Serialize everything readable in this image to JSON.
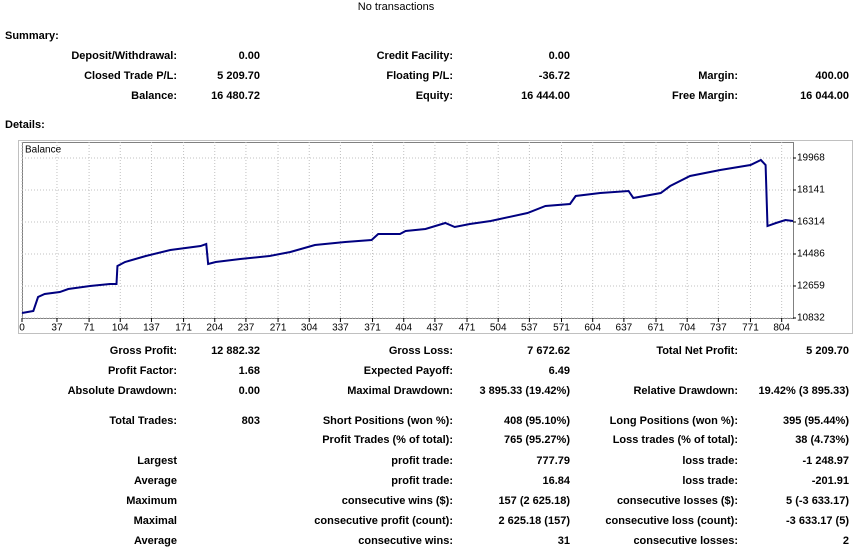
{
  "header": "No transactions",
  "summary": {
    "title": "Summary:",
    "rows": [
      [
        "Deposit/Withdrawal:",
        "0.00",
        "Credit Facility:",
        "0.00",
        null,
        null
      ],
      [
        "Closed Trade P/L:",
        "5 209.70",
        "Floating P/L:",
        "-36.72",
        "Margin:",
        "400.00"
      ],
      [
        "Balance:",
        "16 480.72",
        "Equity:",
        "16 444.00",
        "Free Margin:",
        "16 044.00"
      ]
    ]
  },
  "details": {
    "title": "Details:",
    "chart": {
      "type": "line",
      "series": [
        {
          "name": "Balance",
          "color": "#000080",
          "x": [
            0,
            12,
            17,
            24,
            40,
            49,
            72,
            93,
            100,
            101,
            109,
            131,
            157,
            189,
            195,
            197,
            205,
            231,
            262,
            284,
            310,
            342,
            370,
            377,
            400,
            406,
            427,
            448,
            458,
            474,
            496,
            535,
            554,
            580,
            586,
            612,
            642,
            647,
            676,
            686,
            707,
            739,
            771,
            782,
            787,
            789,
            798,
            808,
            816
          ],
          "values": [
            11117,
            11232,
            12031,
            12202,
            12316,
            12488,
            12659,
            12773,
            12773,
            13801,
            14030,
            14372,
            14715,
            14943,
            15057,
            13915,
            14030,
            14201,
            14372,
            14601,
            15000,
            15172,
            15286,
            15629,
            15629,
            15800,
            15914,
            16257,
            16029,
            16200,
            16371,
            16828,
            17228,
            17342,
            17799,
            17970,
            18084,
            17685,
            17970,
            18369,
            18940,
            19283,
            19568,
            19854,
            19568,
            16085,
            16257,
            16428,
            16371
          ]
        }
      ],
      "xlim": [
        0,
        816
      ],
      "xticks": [
        0,
        37,
        71,
        104,
        137,
        171,
        204,
        237,
        271,
        304,
        337,
        371,
        404,
        437,
        471,
        504,
        537,
        571,
        604,
        637,
        671,
        704,
        737,
        771,
        804
      ],
      "ylim": [
        10832,
        20882
      ],
      "yticks": [
        10832,
        12659,
        14486,
        16314,
        18141,
        19968
      ],
      "grid": true
    },
    "rows": [
      [
        "Gross Profit:",
        "12 882.32",
        "Gross Loss:",
        "7 672.62",
        "Total Net Profit:",
        "5 209.70"
      ],
      [
        "Profit Factor:",
        "1.68",
        "Expected Payoff:",
        "6.49",
        null,
        null
      ],
      [
        "Absolute Drawdown:",
        "0.00",
        "Maximal Drawdown:",
        "3 895.33 (19.42%)",
        "Relative Drawdown:",
        "19.42% (3 895.33)"
      ],
      [
        "Total Trades:",
        "803",
        "Short Positions (won %):",
        "408 (95.10%)",
        "Long Positions (won %):",
        "395 (95.44%)"
      ],
      [
        null,
        null,
        "Profit Trades (% of total):",
        "765 (95.27%)",
        "Loss trades (% of total):",
        "38 (4.73%)"
      ],
      [
        "Largest",
        null,
        "profit trade:",
        "777.79",
        "loss trade:",
        "-1 248.97"
      ],
      [
        "Average",
        null,
        "profit trade:",
        "16.84",
        "loss trade:",
        "-201.91"
      ],
      [
        "Maximum",
        null,
        "consecutive wins ($):",
        "157 (2 625.18)",
        "consecutive losses ($):",
        "5 (-3 633.17)"
      ],
      [
        "Maximal",
        null,
        "consecutive profit (count):",
        "2 625.18 (157)",
        "consecutive loss (count):",
        "-3 633.17 (5)"
      ],
      [
        "Average",
        null,
        "consecutive wins:",
        "31",
        "consecutive losses:",
        "2"
      ]
    ]
  }
}
